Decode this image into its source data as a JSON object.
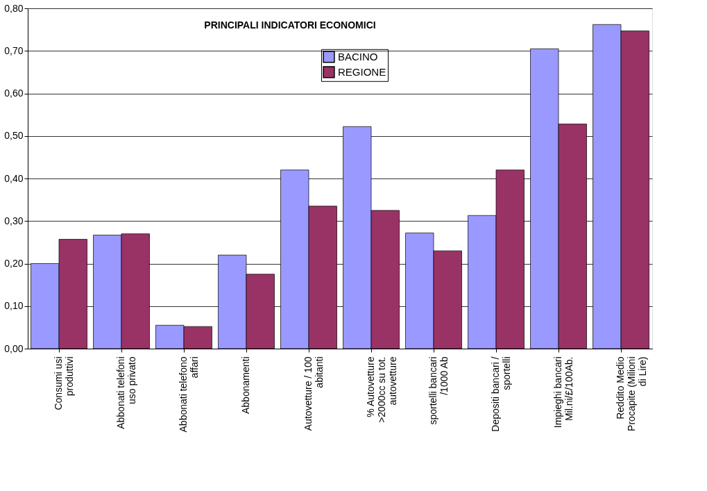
{
  "chart_data": {
    "type": "bar",
    "title": "PRINCIPALI INDICATORI ECONOMICI",
    "categories": [
      "Consumi usi produttivi",
      "Abbonati telefoni uso privato",
      "Abbonati telefono affari",
      "Abbonamenti",
      "Autovetture / 100 abitanti",
      "% Autovetture >2000cc su tot. autovetture",
      "sportelli bancari /1000 Ab",
      "Depositi bancari / sportelli",
      "Impieghi bancari Mil.ni/£/100Ab.",
      "Reddito Medio Procapite (Milioni di Lire)"
    ],
    "series": [
      {
        "name": "BACINO",
        "color": "#9999ff",
        "values": [
          0.2,
          0.267,
          0.055,
          0.22,
          0.42,
          0.522,
          0.272,
          0.313,
          0.705,
          0.762
        ]
      },
      {
        "name": "REGIONE",
        "color": "#993366",
        "values": [
          0.257,
          0.27,
          0.052,
          0.175,
          0.335,
          0.325,
          0.23,
          0.42,
          0.528,
          0.747
        ]
      }
    ],
    "ylim": [
      0,
      0.8
    ],
    "yticks": [
      {
        "value": 0,
        "label": "0,00"
      },
      {
        "value": 0.1,
        "label": "0,10"
      },
      {
        "value": 0.2,
        "label": "0,20"
      },
      {
        "value": 0.3,
        "label": "0,30"
      },
      {
        "value": 0.4,
        "label": "0,40"
      },
      {
        "value": 0.5,
        "label": "0,50"
      },
      {
        "value": 0.6,
        "label": "0,60"
      },
      {
        "value": 0.7,
        "label": "0,70"
      },
      {
        "value": 0.8,
        "label": "0,80"
      }
    ],
    "grid": "y",
    "legend": "top"
  }
}
